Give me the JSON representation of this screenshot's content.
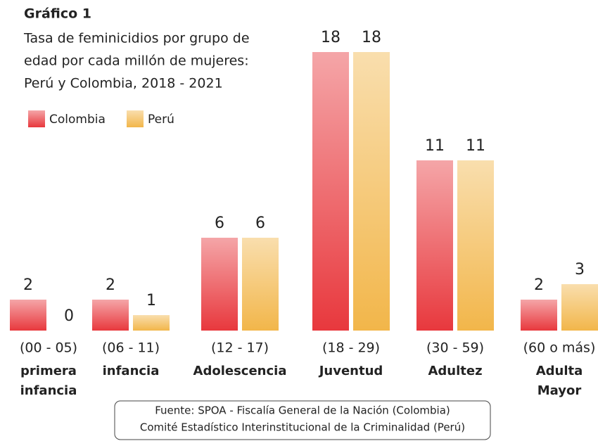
{
  "chart_data": {
    "type": "bar",
    "heading": "Gráfico 1",
    "title": [
      "Tasa de feminicidios por grupo de",
      "edad por cada millón de mujeres:",
      "Perú y Colombia, 2018 - 2021"
    ],
    "categories": [
      "(00 - 05)",
      "(06 - 11)",
      "(12 - 17)",
      "(18 - 29)",
      "(30 - 59)",
      "(60 o más)"
    ],
    "group_labels": [
      [
        "primera",
        "infancia"
      ],
      [
        "infancia"
      ],
      [
        "Adolescencia"
      ],
      [
        "Juventud"
      ],
      [
        "Adultez"
      ],
      [
        "Adulta",
        "Mayor"
      ]
    ],
    "series": [
      {
        "name": "Colombia",
        "color": "#e8383d",
        "values": [
          2,
          2,
          6,
          18,
          11,
          2
        ]
      },
      {
        "name": "Perú",
        "color": "#f2b64a",
        "values": [
          0,
          1,
          6,
          18,
          11,
          3
        ]
      }
    ],
    "ylim": [
      0,
      18
    ],
    "source": [
      "Fuente: SPOA - Fiscalía General de la Nación (Colombia)",
      "Comité Estadístico Interinstitucional de la Criminalidad (Perú)"
    ]
  }
}
